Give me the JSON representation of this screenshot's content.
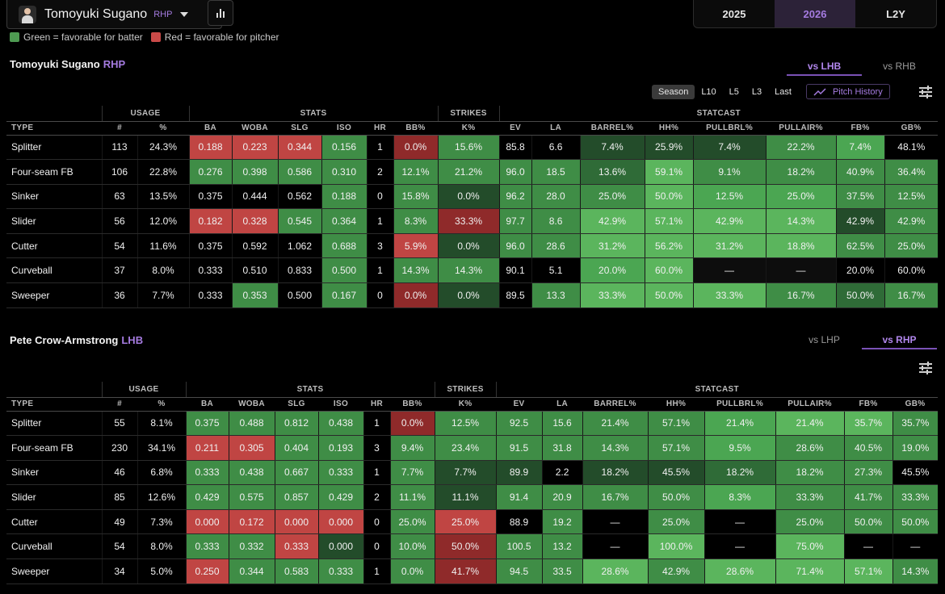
{
  "header": {
    "player_name": "Tomoyuki Sugano",
    "player_hand": "RHP",
    "years": [
      {
        "label": "2025",
        "active": false
      },
      {
        "label": "2026",
        "active": true
      },
      {
        "label": "L2Y",
        "active": false
      }
    ]
  },
  "legend": {
    "green": "Green = favorable for batter",
    "red": "Red = favorable for pitcher"
  },
  "colors": {
    "accent": "#a57be0",
    "green": "#4e9a52",
    "red": "#c94a48"
  },
  "filters": {
    "ranges": [
      {
        "label": "Season",
        "active": true
      },
      {
        "label": "L10",
        "active": false
      },
      {
        "label": "L5",
        "active": false
      },
      {
        "label": "L3",
        "active": false
      },
      {
        "label": "Last",
        "active": false
      }
    ],
    "pitch_history": "Pitch History"
  },
  "groups": [
    "USAGE",
    "STATS",
    "STRIKES",
    "STATCAST"
  ],
  "columns": [
    "TYPE",
    "#",
    "%",
    "BA",
    "WOBA",
    "SLG",
    "ISO",
    "HR",
    "BB%",
    "K%",
    "EV",
    "LA",
    "BARREL%",
    "HH%",
    "PULLBRL%",
    "PULLAIR%",
    "FB%",
    "GB%"
  ],
  "sections": [
    {
      "name": "Tomoyuki Sugano",
      "hand": "RHP",
      "tabs": [
        {
          "label": "vs LHB",
          "active": true
        },
        {
          "label": "vs RHB",
          "active": false
        }
      ],
      "rows": [
        [
          "Splitter",
          "113",
          "24.3%",
          "0.188",
          "0.223",
          "0.344",
          "0.156",
          "1",
          "0.0%",
          "15.6%",
          "85.8",
          "6.6",
          "7.4%",
          "25.9%",
          "7.4%",
          "22.2%",
          "7.4%",
          "48.1%"
        ],
        [
          "Four-seam FB",
          "106",
          "22.8%",
          "0.276",
          "0.398",
          "0.586",
          "0.310",
          "2",
          "12.1%",
          "21.2%",
          "96.0",
          "18.5",
          "13.6%",
          "59.1%",
          "9.1%",
          "18.2%",
          "40.9%",
          "36.4%"
        ],
        [
          "Sinker",
          "63",
          "13.5%",
          "0.375",
          "0.444",
          "0.562",
          "0.188",
          "0",
          "15.8%",
          "0.0%",
          "96.2",
          "28.0",
          "25.0%",
          "50.0%",
          "12.5%",
          "25.0%",
          "37.5%",
          "12.5%"
        ],
        [
          "Slider",
          "56",
          "12.0%",
          "0.182",
          "0.328",
          "0.545",
          "0.364",
          "1",
          "8.3%",
          "33.3%",
          "97.7",
          "8.6",
          "42.9%",
          "57.1%",
          "42.9%",
          "14.3%",
          "42.9%",
          "42.9%"
        ],
        [
          "Cutter",
          "54",
          "11.6%",
          "0.375",
          "0.592",
          "1.062",
          "0.688",
          "3",
          "5.9%",
          "0.0%",
          "96.0",
          "28.6",
          "31.2%",
          "56.2%",
          "31.2%",
          "18.8%",
          "62.5%",
          "25.0%"
        ],
        [
          "Curveball",
          "37",
          "8.0%",
          "0.333",
          "0.510",
          "0.833",
          "0.500",
          "1",
          "14.3%",
          "14.3%",
          "90.1",
          "5.1",
          "20.0%",
          "60.0%",
          "—",
          "—",
          "20.0%",
          "60.0%"
        ],
        [
          "Sweeper",
          "36",
          "7.7%",
          "0.333",
          "0.353",
          "0.500",
          "0.167",
          "0",
          "0.0%",
          "0.0%",
          "89.5",
          "13.3",
          "33.3%",
          "50.0%",
          "33.3%",
          "16.7%",
          "50.0%",
          "16.7%"
        ]
      ],
      "shades": [
        [
          "r",
          "r",
          "r",
          "g",
          "n",
          "dr",
          "g",
          "n",
          "n",
          "dg",
          "dg",
          "dg",
          "g",
          "bg",
          "n",
          "br"
        ],
        [
          "g",
          "g",
          "g",
          "g",
          "n",
          "g",
          "g",
          "g",
          "g",
          "mg",
          "lg",
          "g",
          "g",
          "g",
          "g",
          "n"
        ],
        [
          "n",
          "n",
          "n",
          "g",
          "n",
          "g",
          "dg",
          "g",
          "g",
          "g",
          "lg",
          "bg",
          "bg",
          "g",
          "g",
          "n"
        ],
        [
          "r",
          "r",
          "g",
          "g",
          "n",
          "g",
          "dr",
          "g",
          "g",
          "lg",
          "lg",
          "lg",
          "lg",
          "dg",
          "g",
          "n"
        ],
        [
          "n",
          "n",
          "n",
          "g",
          "n",
          "r",
          "dg",
          "g",
          "g",
          "lg",
          "lg",
          "lg",
          "lg",
          "g",
          "g",
          "n"
        ],
        [
          "n",
          "n",
          "n",
          "g",
          "n",
          "g",
          "g",
          "n",
          "n",
          "bg",
          "lg",
          "nn",
          "nn",
          "n",
          "n",
          "r"
        ],
        [
          "n",
          "g",
          "n",
          "g",
          "n",
          "dr",
          "dg",
          "n",
          "g",
          "lg",
          "lg",
          "lg",
          "g",
          "mg",
          "g",
          "n"
        ]
      ]
    },
    {
      "name": "Pete Crow-Armstrong",
      "hand": "LHB",
      "tabs": [
        {
          "label": "vs LHP",
          "active": false
        },
        {
          "label": "vs RHP",
          "active": true
        }
      ],
      "rows": [
        [
          "Splitter",
          "55",
          "8.1%",
          "0.375",
          "0.488",
          "0.812",
          "0.438",
          "1",
          "0.0%",
          "12.5%",
          "92.5",
          "15.6",
          "21.4%",
          "57.1%",
          "21.4%",
          "21.4%",
          "35.7%",
          "35.7%"
        ],
        [
          "Four-seam FB",
          "230",
          "34.1%",
          "0.211",
          "0.305",
          "0.404",
          "0.193",
          "3",
          "9.4%",
          "23.4%",
          "91.5",
          "31.8",
          "14.3%",
          "57.1%",
          "9.5%",
          "28.6%",
          "40.5%",
          "19.0%"
        ],
        [
          "Sinker",
          "46",
          "6.8%",
          "0.333",
          "0.438",
          "0.667",
          "0.333",
          "1",
          "7.7%",
          "7.7%",
          "89.9",
          "2.2",
          "18.2%",
          "45.5%",
          "18.2%",
          "18.2%",
          "27.3%",
          "45.5%"
        ],
        [
          "Slider",
          "85",
          "12.6%",
          "0.429",
          "0.575",
          "0.857",
          "0.429",
          "2",
          "11.1%",
          "11.1%",
          "91.4",
          "20.9",
          "16.7%",
          "50.0%",
          "8.3%",
          "33.3%",
          "41.7%",
          "33.3%"
        ],
        [
          "Cutter",
          "49",
          "7.3%",
          "0.000",
          "0.172",
          "0.000",
          "0.000",
          "0",
          "25.0%",
          "25.0%",
          "88.9",
          "19.2",
          "—",
          "25.0%",
          "—",
          "25.0%",
          "50.0%",
          "50.0%"
        ],
        [
          "Curveball",
          "54",
          "8.0%",
          "0.333",
          "0.332",
          "0.333",
          "0.000",
          "0",
          "10.0%",
          "50.0%",
          "100.5",
          "13.2",
          "—",
          "100.0%",
          "—",
          "75.0%",
          "—",
          "—"
        ],
        [
          "Sweeper",
          "34",
          "5.0%",
          "0.250",
          "0.344",
          "0.583",
          "0.333",
          "1",
          "0.0%",
          "41.7%",
          "94.5",
          "33.5",
          "28.6%",
          "42.9%",
          "28.6%",
          "71.4%",
          "57.1%",
          "14.3%"
        ]
      ],
      "shades": [
        [
          "g",
          "g",
          "g",
          "g",
          "n",
          "dr",
          "g",
          "g",
          "g",
          "g",
          "g",
          "bg",
          "lg",
          "lg",
          "g",
          "n"
        ],
        [
          "r",
          "r",
          "g",
          "g",
          "n",
          "g",
          "g",
          "g",
          "g",
          "g",
          "g",
          "bg",
          "g",
          "g",
          "g",
          "n"
        ],
        [
          "g",
          "g",
          "g",
          "g",
          "n",
          "g",
          "dg",
          "dg",
          "n",
          "dg",
          "dg",
          "mg",
          "g",
          "g",
          "n",
          "br"
        ],
        [
          "g",
          "g",
          "g",
          "g",
          "n",
          "g",
          "dg",
          "g",
          "g",
          "g",
          "g",
          "bg",
          "g",
          "g",
          "g",
          "n"
        ],
        [
          "r",
          "r",
          "r",
          "r",
          "n",
          "g",
          "r",
          "n",
          "g",
          "n",
          "g",
          "n",
          "g",
          "g",
          "g",
          "br"
        ],
        [
          "g",
          "g",
          "r",
          "dg",
          "n",
          "g",
          "dr",
          "g",
          "g",
          "n",
          "lg",
          "n",
          "lg",
          "n",
          "n",
          "n"
        ],
        [
          "r",
          "g",
          "g",
          "g",
          "n",
          "g",
          "dr",
          "g",
          "g",
          "lg",
          "g",
          "lg",
          "lg",
          "lg",
          "g",
          "n"
        ]
      ]
    }
  ]
}
